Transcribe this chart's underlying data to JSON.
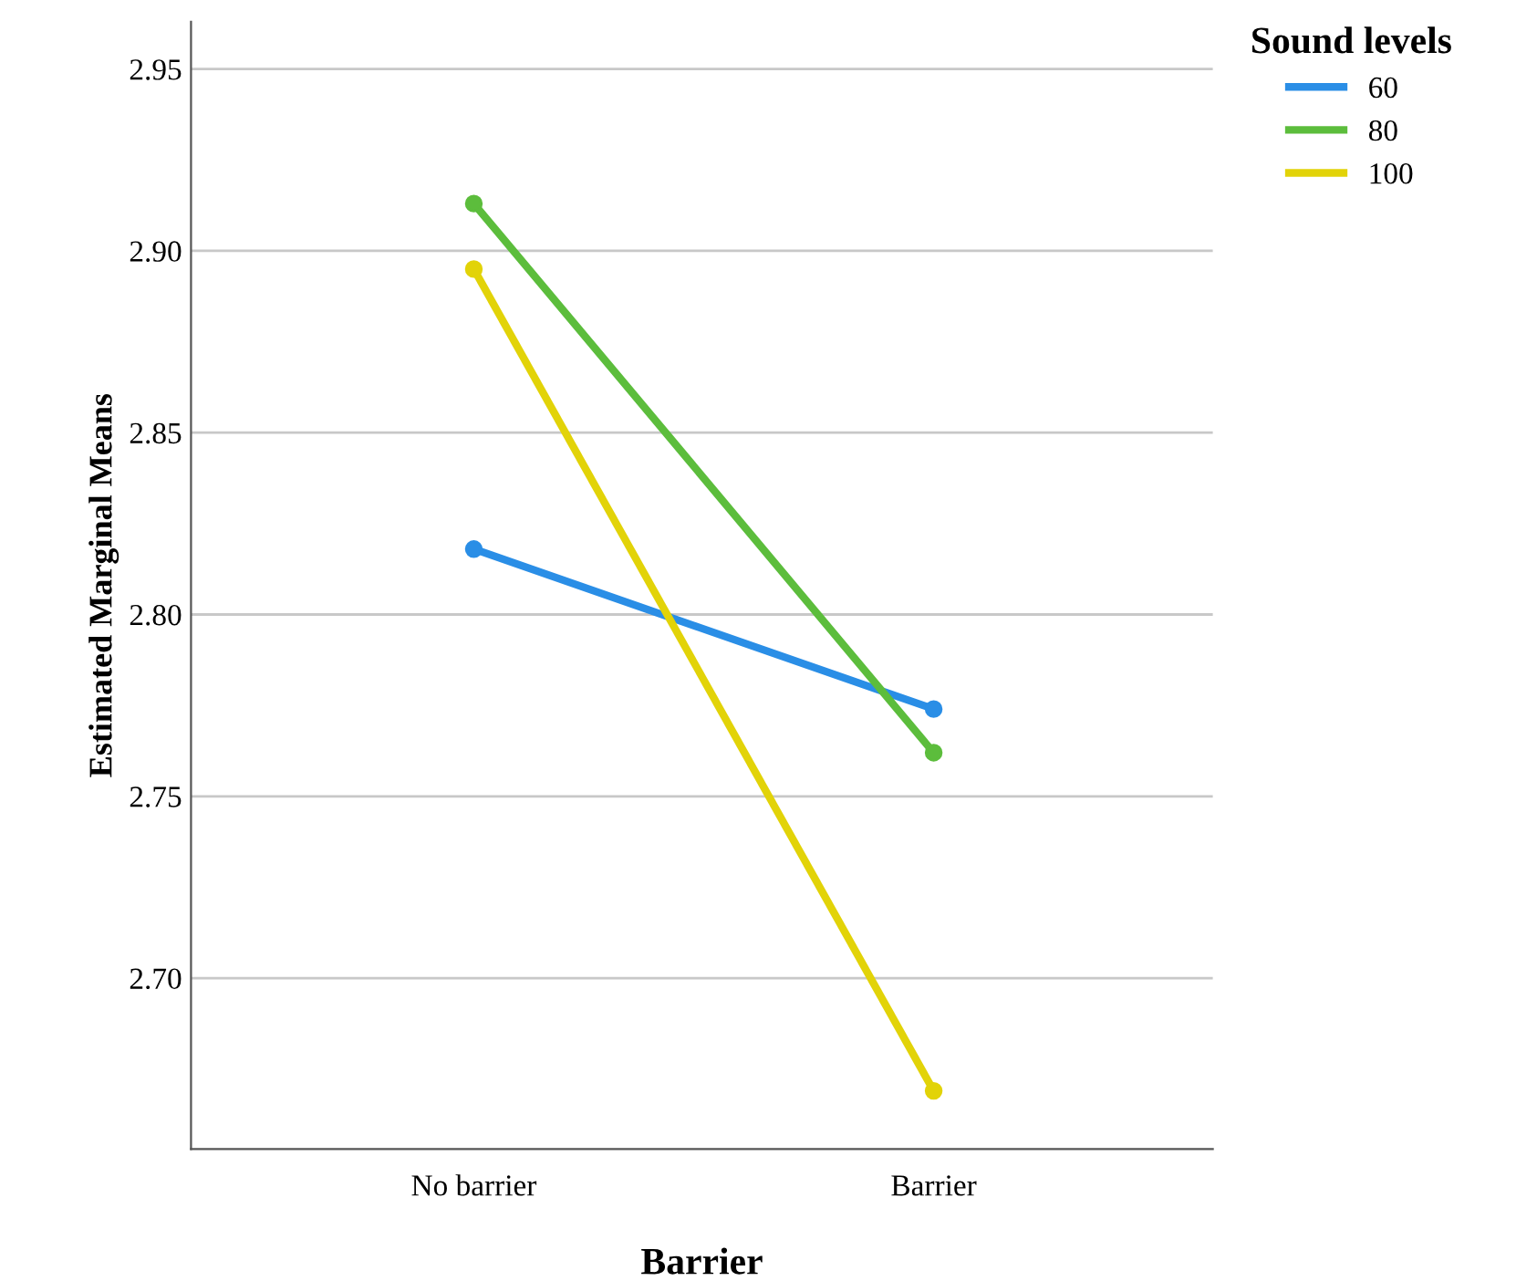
{
  "chart_data": {
    "type": "line",
    "xlabel": "Barrier",
    "ylabel": "Estimated Marginal Means",
    "legend_title": "Sound levels",
    "categories": [
      "No barrier",
      "Barrier"
    ],
    "series": [
      {
        "name": "60",
        "color": "#2a8ee6",
        "values": [
          2.818,
          2.774
        ]
      },
      {
        "name": "80",
        "color": "#5cbd3c",
        "values": [
          2.913,
          2.762
        ]
      },
      {
        "name": "100",
        "color": "#e2d308",
        "values": [
          2.895,
          2.669
        ]
      }
    ],
    "ylim": [
      2.653,
      2.963
    ],
    "yticks": [
      {
        "value": 2.7,
        "label": "2.70"
      },
      2.75,
      {
        "value": 2.8,
        "label": "2.80"
      },
      2.85,
      {
        "value": 2.9,
        "label": "2.90"
      },
      2.95
    ],
    "grid": "y",
    "legend": "top right",
    "marker": "circle",
    "line_style": "solid"
  }
}
